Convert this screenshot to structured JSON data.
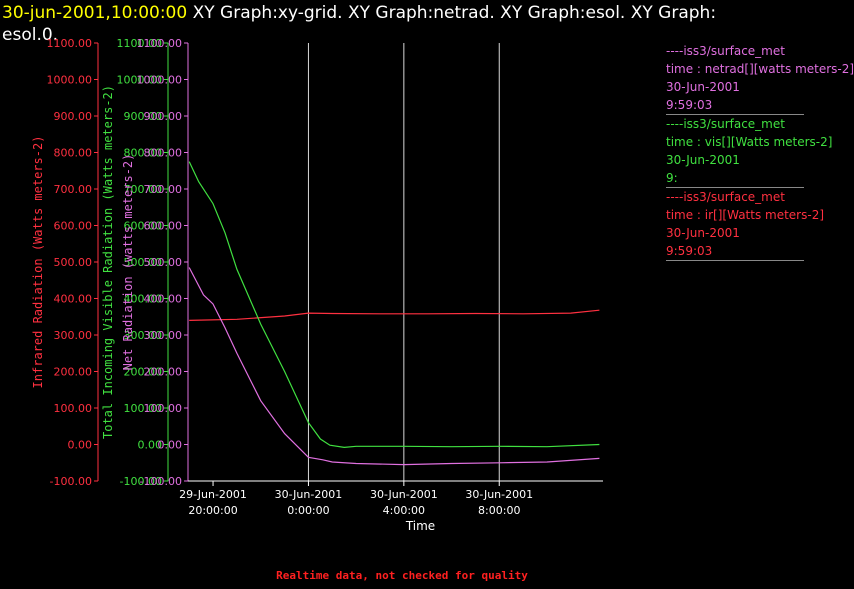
{
  "header": {
    "timestamp": "30-jun-2001,10:00:00",
    "title_line1": "XY Graph:xy-grid.  XY Graph:netrad.  XY Graph:esol.  XY Graph:",
    "title_line2": "esol.0."
  },
  "footer": {
    "note": "Realtime data, not checked for quality"
  },
  "legend": [
    {
      "lines": [
        "----iss3/surface_met",
        "time : netrad[][watts meters-2]",
        "30-Jun-2001",
        "9:59:03"
      ],
      "color": "#e070e0"
    },
    {
      "lines": [
        "----iss3/surface_met",
        "time : vis[][Watts meters-2]",
        "30-Jun-2001",
        "9:"
      ],
      "color": "#40e040"
    },
    {
      "lines": [
        "----iss3/surface_met",
        "time : ir[][Watts meters-2]",
        "30-Jun-2001",
        "9:59:03"
      ],
      "color": "#ff3040"
    }
  ],
  "chart_data": {
    "type": "line",
    "xlabel": "Time",
    "x_ticks": [
      {
        "hours": 0,
        "line1": "29-Jun-2001",
        "line2": "20:00:00"
      },
      {
        "hours": 4,
        "line1": "30-Jun-2001",
        "line2": "0:00:00"
      },
      {
        "hours": 8,
        "line1": "30-Jun-2001",
        "line2": "4:00:00"
      },
      {
        "hours": 12,
        "line1": "30-Jun-2001",
        "line2": "8:00:00"
      }
    ],
    "xlim_hours": [
      -1.05,
      16.35
    ],
    "y_axes": [
      {
        "label": "Infrared Radiation (Watts meters-2)",
        "color": "#ff3040",
        "ylim": [
          -100,
          1100
        ]
      },
      {
        "label": "Total Incoming Visible Radiation (Watts meters-2)",
        "color": "#40e040",
        "ylim": [
          -100,
          1100
        ]
      },
      {
        "label": "Net Radiation (watts meters-2)",
        "color": "#e070e0",
        "ylim": [
          -100,
          1100
        ]
      }
    ],
    "y_ticks": [
      -100,
      0,
      100,
      200,
      300,
      400,
      500,
      600,
      700,
      800,
      900,
      1000,
      1100
    ],
    "grid_x": true,
    "series": [
      {
        "name": "ir",
        "color": "#ff3040",
        "x": [
          -1.0,
          1,
          3,
          4,
          5,
          7,
          9,
          11,
          13,
          15,
          16.2
        ],
        "y": [
          340,
          343,
          352,
          360,
          359,
          358,
          358,
          359,
          358,
          360,
          368
        ]
      },
      {
        "name": "vis",
        "color": "#40e040",
        "x": [
          -1.0,
          -0.6,
          0,
          0.5,
          1,
          2,
          3,
          4,
          4.5,
          4.9,
          5.5,
          6,
          8,
          10,
          12,
          14,
          16.2
        ],
        "y": [
          775,
          720,
          660,
          580,
          480,
          330,
          200,
          60,
          15,
          -2,
          -8,
          -5,
          -5,
          -6,
          -5,
          -6,
          0
        ]
      },
      {
        "name": "netrad",
        "color": "#e070e0",
        "x": [
          -1.0,
          -0.4,
          0,
          0.5,
          1,
          2,
          3,
          4,
          4.6,
          5,
          6,
          8,
          10,
          12,
          14,
          16.2
        ],
        "y": [
          485,
          410,
          385,
          320,
          250,
          120,
          30,
          -35,
          -42,
          -48,
          -52,
          -55,
          -52,
          -50,
          -48,
          -38
        ]
      }
    ]
  }
}
